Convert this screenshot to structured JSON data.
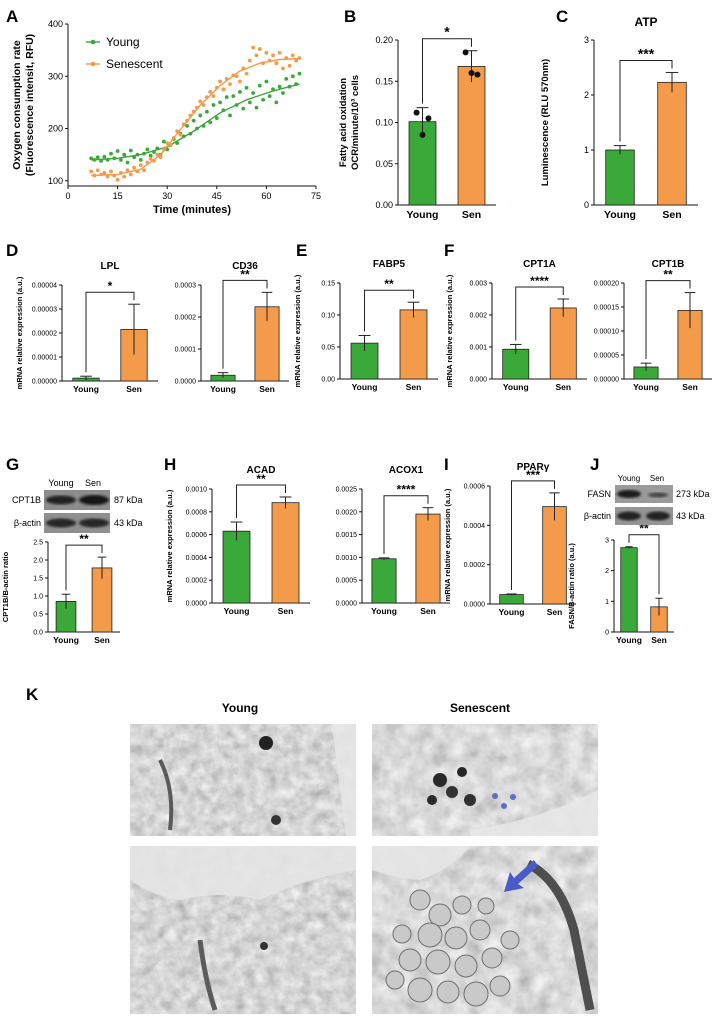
{
  "colors": {
    "young": "#3ba83a",
    "senescent": "#f49a4b",
    "axis": "#111111"
  },
  "panels": {
    "A": "A",
    "B": "B",
    "C": "C",
    "D": "D",
    "E": "E",
    "F": "F",
    "G": "G",
    "H": "H",
    "I": "I",
    "J": "J",
    "K": "K"
  },
  "chart_data": [
    {
      "id": "A",
      "type": "scatter",
      "xlabel": "Time (minutes)",
      "ylabel": [
        "Oxygen consumption rate",
        "(Fluorescence intensit, RFU)"
      ],
      "xlim": [
        0,
        75
      ],
      "ylim": [
        90,
        400
      ],
      "xticks": [
        0,
        15,
        30,
        45,
        60,
        75
      ],
      "yticks": [
        100,
        200,
        300,
        400
      ],
      "legend": "top-left",
      "series": [
        {
          "name": "Young",
          "color_key": "young",
          "points": [
            [
              7,
              143
            ],
            [
              8,
              140
            ],
            [
              9,
              145
            ],
            [
              10,
              138
            ],
            [
              11,
              146
            ],
            [
              12,
              140
            ],
            [
              13,
              152
            ],
            [
              14,
              143
            ],
            [
              15,
              157
            ],
            [
              16,
              140
            ],
            [
              17,
              150
            ],
            [
              18,
              135
            ],
            [
              19,
              158
            ],
            [
              20,
              145
            ],
            [
              21,
              150
            ],
            [
              22,
              140
            ],
            [
              23,
              152
            ],
            [
              24,
              160
            ],
            [
              25,
              148
            ],
            [
              26,
              155
            ],
            [
              27,
              162
            ],
            [
              28,
              150
            ],
            [
              29,
              175
            ],
            [
              30,
              160
            ],
            [
              31,
              168
            ],
            [
              32,
              180
            ],
            [
              33,
              172
            ],
            [
              34,
              190
            ],
            [
              35,
              185
            ],
            [
              36,
              205
            ],
            [
              37,
              190
            ],
            [
              38,
              215
            ],
            [
              39,
              200
            ],
            [
              40,
              225
            ],
            [
              41,
              205
            ],
            [
              42,
              232
            ],
            [
              43,
              212
            ],
            [
              44,
              245
            ],
            [
              45,
              220
            ],
            [
              46,
              250
            ],
            [
              47,
              235
            ],
            [
              48,
              260
            ],
            [
              49,
              225
            ],
            [
              50,
              262
            ],
            [
              51,
              245
            ],
            [
              52,
              270
            ],
            [
              53,
              238
            ],
            [
              54,
              278
            ],
            [
              55,
              250
            ],
            [
              56,
              268
            ],
            [
              57,
              240
            ],
            [
              58,
              282
            ],
            [
              59,
              255
            ],
            [
              60,
              290
            ],
            [
              61,
              262
            ],
            [
              62,
              275
            ],
            [
              63,
              250
            ],
            [
              64,
              280
            ],
            [
              65,
              268
            ],
            [
              66,
              295
            ],
            [
              67,
              280
            ],
            [
              68,
              300
            ],
            [
              69,
              285
            ],
            [
              70,
              305
            ]
          ],
          "fit": [
            [
              7,
              140
            ],
            [
              15,
              143
            ],
            [
              22,
              150
            ],
            [
              30,
              165
            ],
            [
              38,
              195
            ],
            [
              46,
              230
            ],
            [
              54,
              255
            ],
            [
              62,
              272
            ],
            [
              70,
              285
            ]
          ]
        },
        {
          "name": "Senescent",
          "color_key": "senescent",
          "points": [
            [
              7,
              118
            ],
            [
              8,
              110
            ],
            [
              9,
              120
            ],
            [
              10,
              112
            ],
            [
              11,
              115
            ],
            [
              12,
              108
            ],
            [
              13,
              118
            ],
            [
              14,
              110
            ],
            [
              15,
              102
            ],
            [
              16,
              115
            ],
            [
              17,
              108
            ],
            [
              18,
              120
            ],
            [
              19,
              112
            ],
            [
              20,
              125
            ],
            [
              21,
              118
            ],
            [
              22,
              130
            ],
            [
              23,
              120
            ],
            [
              24,
              135
            ],
            [
              25,
              142
            ],
            [
              26,
              138
            ],
            [
              27,
              150
            ],
            [
              28,
              145
            ],
            [
              29,
              160
            ],
            [
              30,
              172
            ],
            [
              31,
              168
            ],
            [
              32,
              182
            ],
            [
              33,
              195
            ],
            [
              34,
              188
            ],
            [
              35,
              208
            ],
            [
              36,
              215
            ],
            [
              37,
              225
            ],
            [
              38,
              232
            ],
            [
              39,
              240
            ],
            [
              40,
              252
            ],
            [
              41,
              245
            ],
            [
              42,
              260
            ],
            [
              43,
              270
            ],
            [
              44,
              262
            ],
            [
              45,
              278
            ],
            [
              46,
              290
            ],
            [
              47,
              275
            ],
            [
              48,
              295
            ],
            [
              49,
              285
            ],
            [
              50,
              302
            ],
            [
              51,
              300
            ],
            [
              52,
              290
            ],
            [
              53,
              315
            ],
            [
              54,
              305
            ],
            [
              55,
              330
            ],
            [
              56,
              355
            ],
            [
              57,
              340
            ],
            [
              58,
              352
            ],
            [
              59,
              325
            ],
            [
              60,
              345
            ],
            [
              61,
              330
            ],
            [
              62,
              340
            ],
            [
              63,
              325
            ],
            [
              64,
              345
            ],
            [
              65,
              315
            ],
            [
              66,
              335
            ],
            [
              67,
              320
            ],
            [
              68,
              340
            ],
            [
              69,
              330
            ],
            [
              70,
              335
            ]
          ],
          "fit": [
            [
              7,
              110
            ],
            [
              15,
              112
            ],
            [
              22,
              122
            ],
            [
              28,
              150
            ],
            [
              34,
              198
            ],
            [
              40,
              245
            ],
            [
              46,
              282
            ],
            [
              52,
              310
            ],
            [
              58,
              325
            ],
            [
              64,
              332
            ],
            [
              70,
              334
            ]
          ]
        }
      ]
    },
    {
      "id": "B",
      "type": "bar",
      "ylabel": [
        "Fatty acid oxidation",
        "OCR/minute/10³ cells"
      ],
      "categories": [
        "Young",
        "Sen"
      ],
      "values": [
        0.101,
        0.168
      ],
      "errors": [
        0.017,
        0.019
      ],
      "points": [
        [
          0.112,
          0.085,
          0.105
        ],
        [
          0.185,
          0.16,
          0.158
        ]
      ],
      "ylim": [
        0,
        0.2
      ],
      "yticks": [
        "0.00",
        "0.05",
        "0.10",
        "0.15",
        "0.20"
      ],
      "sig": "*"
    },
    {
      "id": "C",
      "type": "bar",
      "title": "ATP",
      "ylabel": [
        "Luminescence (RLU 570nm)"
      ],
      "categories": [
        "Young",
        "Sen"
      ],
      "values": [
        1.0,
        2.23
      ],
      "errors": [
        0.08,
        0.18
      ],
      "ylim": [
        0,
        3
      ],
      "yticks": [
        "0",
        "1",
        "2",
        "3"
      ],
      "sig": "***"
    },
    {
      "id": "D1",
      "type": "bar",
      "title": "LPL",
      "ylabel": [
        "mRNA relative expression (a.u.)"
      ],
      "categories": [
        "Young",
        "Sen"
      ],
      "values": [
        1.2e-06,
        2.15e-05
      ],
      "errors": [
        8e-07,
        1.05e-05
      ],
      "ylim": [
        0,
        4e-05
      ],
      "yticks": [
        "0.00000",
        "0.00001",
        "0.00002",
        "0.00003",
        "0.00004"
      ],
      "sig": "*"
    },
    {
      "id": "D2",
      "type": "bar",
      "title": "CD36",
      "categories": [
        "Young",
        "Sen"
      ],
      "values": [
        1.8e-05,
        0.000232
      ],
      "errors": [
        8e-06,
        4.5e-05
      ],
      "ylim": [
        0,
        0.0003
      ],
      "yticks": [
        "0.0000",
        "0.0001",
        "0.0002",
        "0.0003"
      ],
      "sig": "**"
    },
    {
      "id": "E",
      "type": "bar",
      "title": "FABP5",
      "ylabel": [
        "mRNA relative expression (a.u.)"
      ],
      "categories": [
        "Young",
        "Sen"
      ],
      "values": [
        0.056,
        0.108
      ],
      "errors": [
        0.012,
        0.012
      ],
      "ylim": [
        0,
        0.15
      ],
      "yticks": [
        "0.00",
        "0.05",
        "0.10",
        "0.15"
      ],
      "sig": "**"
    },
    {
      "id": "F1",
      "type": "bar",
      "title": "CPT1A",
      "ylabel": [
        "mRNA relative expression (a.u.)"
      ],
      "categories": [
        "Young",
        "Sen"
      ],
      "values": [
        0.00093,
        0.00222
      ],
      "errors": [
        0.00015,
        0.00028
      ],
      "ylim": [
        0,
        0.003
      ],
      "yticks": [
        "0.000",
        "0.001",
        "0.002",
        "0.003"
      ],
      "sig": "****"
    },
    {
      "id": "F2",
      "type": "bar",
      "title": "CPT1B",
      "categories": [
        "Young",
        "Sen"
      ],
      "values": [
        2.5e-05,
        0.000143
      ],
      "errors": [
        8e-06,
        3.7e-05
      ],
      "ylim": [
        0,
        0.0002
      ],
      "yticks": [
        "0.00000",
        "0.00005",
        "0.00010",
        "0.00015",
        "0.00020"
      ],
      "sig": "**"
    },
    {
      "id": "G",
      "type": "bar",
      "ylabel": [
        "CPT1B/B-actin ratio"
      ],
      "categories": [
        "Young",
        "Sen"
      ],
      "values": [
        0.85,
        1.78
      ],
      "errors": [
        0.2,
        0.3
      ],
      "ylim": [
        0,
        2.5
      ],
      "yticks": [
        "0.0",
        "0.5",
        "1.0",
        "1.5",
        "2.0",
        "2.5"
      ],
      "sig": "**"
    },
    {
      "id": "H1",
      "type": "bar",
      "title": "ACAD",
      "ylabel": [
        "mRNA relative expression (a.u.)"
      ],
      "categories": [
        "Young",
        "Sen"
      ],
      "values": [
        0.00063,
        0.00088
      ],
      "errors": [
        8e-05,
        5e-05
      ],
      "ylim": [
        0,
        0.001
      ],
      "yticks": [
        "0.0000",
        "0.0002",
        "0.0004",
        "0.0006",
        "0.0008",
        "0.0010"
      ],
      "sig": "**"
    },
    {
      "id": "H2",
      "type": "bar",
      "title": "ACOX1",
      "categories": [
        "Young",
        "Sen"
      ],
      "values": [
        0.00097,
        0.00195
      ],
      "errors": [
        2e-05,
        0.00014
      ],
      "ylim": [
        0,
        0.0025
      ],
      "yticks": [
        "0.0000",
        "0.0005",
        "0.0010",
        "0.0015",
        "0.0020",
        "0.0025"
      ],
      "sig": "****"
    },
    {
      "id": "I",
      "type": "bar",
      "title": "PPARγ",
      "ylabel": [
        "mRNA relative expression (a.u.)"
      ],
      "categories": [
        "Young",
        "Sen"
      ],
      "values": [
        4.8e-05,
        0.000495
      ],
      "errors": [
        3e-06,
        7e-05
      ],
      "ylim": [
        0,
        0.0006
      ],
      "yticks": [
        "0.0000",
        "0.0002",
        "0.0004",
        "0.0006"
      ],
      "sig": "***"
    },
    {
      "id": "J",
      "type": "bar",
      "ylabel": [
        "FASN/B-actin ratio (a.u.)"
      ],
      "categories": [
        "Young",
        "Sen"
      ],
      "values": [
        2.75,
        0.82
      ],
      "errors": [
        0.03,
        0.28
      ],
      "ylim": [
        0,
        3
      ],
      "yticks": [
        "0",
        "1",
        "2",
        "3"
      ],
      "sig": "**"
    }
  ],
  "blots": {
    "G": {
      "lanes": [
        "Young",
        "Sen"
      ],
      "rows": [
        {
          "protein": "CPT1B",
          "size": "87 kDa"
        },
        {
          "protein": "β-actin",
          "size": "43 kDa"
        }
      ]
    },
    "J": {
      "lanes": [
        "Young",
        "Sen"
      ],
      "rows": [
        {
          "protein": "FASN",
          "size": "273 kDa"
        },
        {
          "protein": "β-actin",
          "size": "43 kDa"
        }
      ]
    }
  },
  "micrographs": {
    "col_young": "Young",
    "col_senescent": "Senescent"
  }
}
